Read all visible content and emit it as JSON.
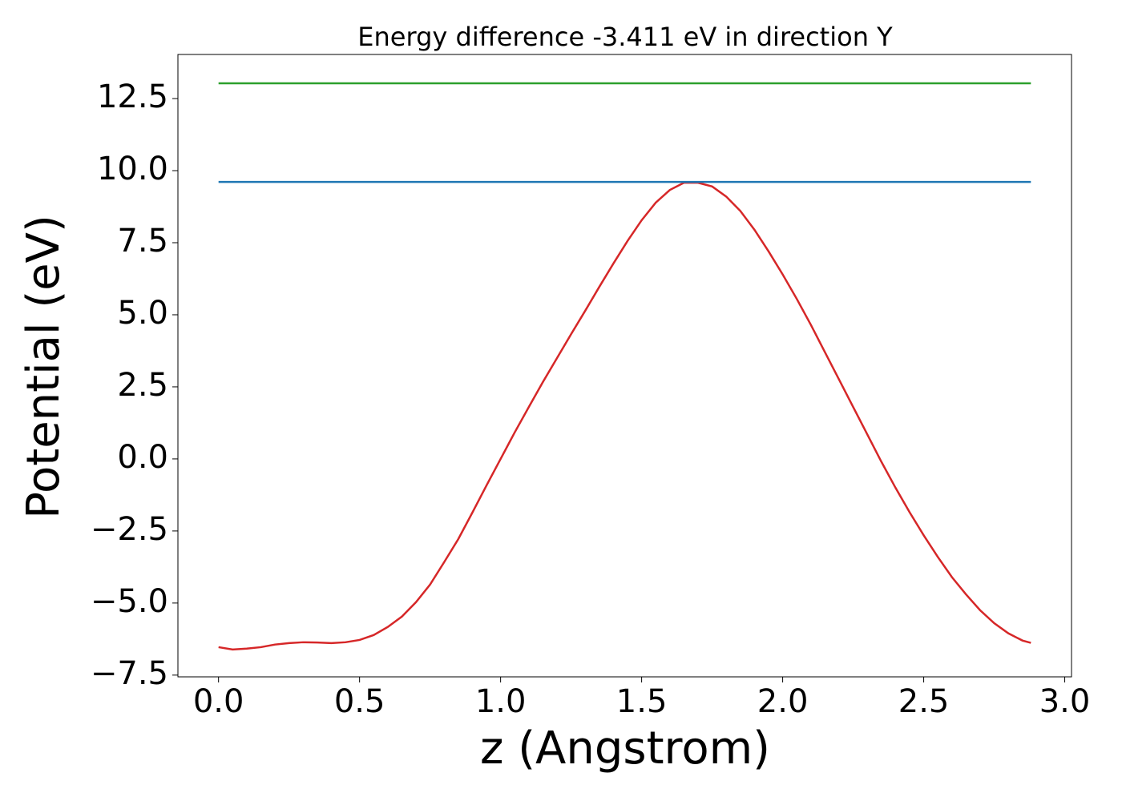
{
  "chart_data": {
    "type": "line",
    "title": "Energy difference -3.411 eV in direction Y",
    "xlabel": "z (Angstrom)",
    "ylabel": "Potential (eV)",
    "xlim": [
      -0.144,
      3.024
    ],
    "ylim": [
      -7.56,
      14.03
    ],
    "xticks": [
      {
        "value": 0,
        "label": "0.0"
      },
      0.5,
      {
        "value": 1,
        "label": "1.0"
      },
      1.5,
      {
        "value": 2,
        "label": "2.0"
      },
      2.5,
      {
        "value": 3,
        "label": "3.0"
      }
    ],
    "yticks": [
      {
        "value": -7.5,
        "label": "−7.5"
      },
      {
        "value": -5,
        "label": "−5.0"
      },
      {
        "value": -2.5,
        "label": "−2.5"
      },
      {
        "value": 0,
        "label": "0.0"
      },
      2.5,
      {
        "value": 5,
        "label": "5.0"
      },
      7.5,
      {
        "value": 10,
        "label": "10.0"
      },
      12.5
    ],
    "grid": false,
    "series": [
      {
        "color": "#d62728",
        "x": [
          0,
          0.05,
          0.1,
          0.15,
          0.2,
          0.25,
          0.3,
          0.35,
          0.4,
          0.45,
          0.5,
          0.55,
          0.6,
          0.65,
          0.7,
          0.75,
          0.8,
          0.85,
          0.9,
          0.95,
          1.0,
          1.05,
          1.1,
          1.15,
          1.2,
          1.25,
          1.3,
          1.35,
          1.4,
          1.45,
          1.5,
          1.55,
          1.6,
          1.65,
          1.7,
          1.75,
          1.8,
          1.85,
          1.9,
          1.95,
          2.0,
          2.05,
          2.1,
          2.15,
          2.2,
          2.25,
          2.3,
          2.35,
          2.4,
          2.45,
          2.5,
          2.55,
          2.6,
          2.65,
          2.7,
          2.75,
          2.8,
          2.85,
          2.88
        ],
        "values": [
          -6.53,
          -6.61,
          -6.58,
          -6.53,
          -6.44,
          -6.39,
          -6.36,
          -6.37,
          -6.39,
          -6.36,
          -6.28,
          -6.11,
          -5.83,
          -5.47,
          -4.97,
          -4.36,
          -3.58,
          -2.78,
          -1.86,
          -0.92,
          0.0,
          0.92,
          1.8,
          2.67,
          3.5,
          4.33,
          5.14,
          5.97,
          6.78,
          7.56,
          8.28,
          8.89,
          9.33,
          9.58,
          9.58,
          9.45,
          9.1,
          8.6,
          7.95,
          7.2,
          6.4,
          5.55,
          4.65,
          3.7,
          2.75,
          1.8,
          0.85,
          -0.1,
          -1.0,
          -1.85,
          -2.65,
          -3.4,
          -4.1,
          -4.7,
          -5.25,
          -5.7,
          -6.05,
          -6.3,
          -6.38
        ]
      },
      {
        "color": "#1f77b4",
        "x": [
          0,
          2.88
        ],
        "values": [
          9.61,
          9.61
        ]
      },
      {
        "color": "#2ca02c",
        "x": [
          0,
          2.88
        ],
        "values": [
          13.03,
          13.03
        ]
      }
    ]
  }
}
